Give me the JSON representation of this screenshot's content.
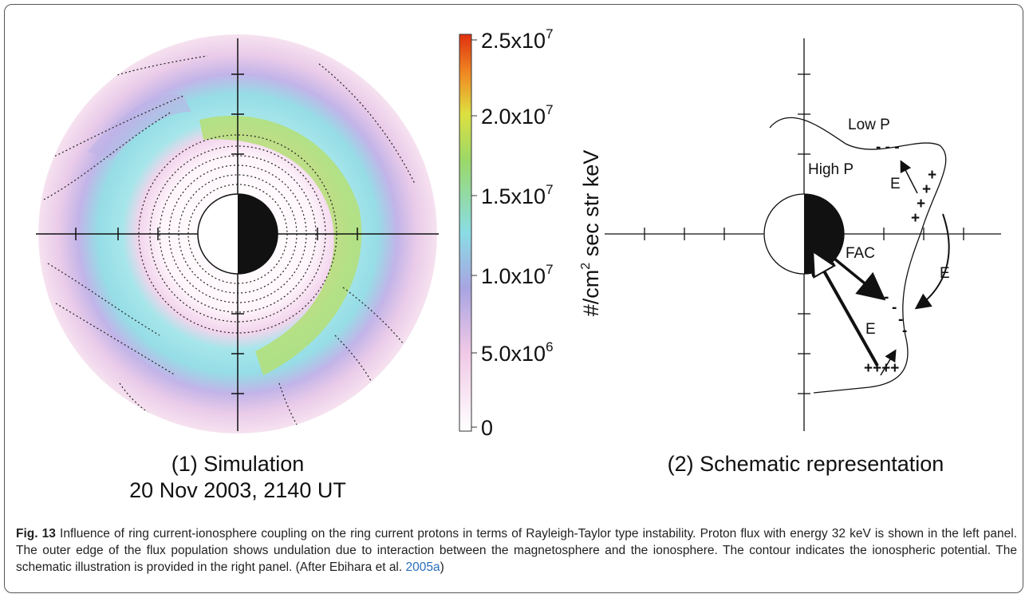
{
  "panel1": {
    "label": "(1) Simulation",
    "date": "20 Nov 2003, 2140 UT"
  },
  "colorbar": {
    "title_parts": [
      "#/cm",
      "2",
      " sec str keV"
    ],
    "ticks": [
      {
        "base": "2.5x10",
        "exp": "7"
      },
      {
        "base": "2.0x10",
        "exp": "7"
      },
      {
        "base": "1.5x10",
        "exp": "7"
      },
      {
        "base": "1.0x10",
        "exp": "7"
      },
      {
        "base": "5.0x10",
        "exp": "6"
      },
      {
        "base": "0"
      }
    ]
  },
  "panel2": {
    "label": "(2) Schematic representation",
    "annotations": [
      "Low P",
      "High P",
      "E",
      "E",
      "E",
      "FAC",
      "- - -",
      "+",
      "+",
      "+",
      "+",
      "-",
      "-",
      "-",
      "-",
      "++++"
    ]
  },
  "caption": {
    "label": "Fig. 13",
    "text": "Influence of ring current-ionosphere coupling on the ring current protons in terms of Rayleigh-Taylor type instability. Proton flux with energy 32 keV is shown in the left panel. The outer edge of the flux population shows undulation due to interaction between the magnetosphere and the ionosphere. The contour indicates the ionospheric potential. The schematic illustration is provided in the right panel. (After Ebihara et al. ",
    "link": "2005a",
    "end": ")"
  }
}
